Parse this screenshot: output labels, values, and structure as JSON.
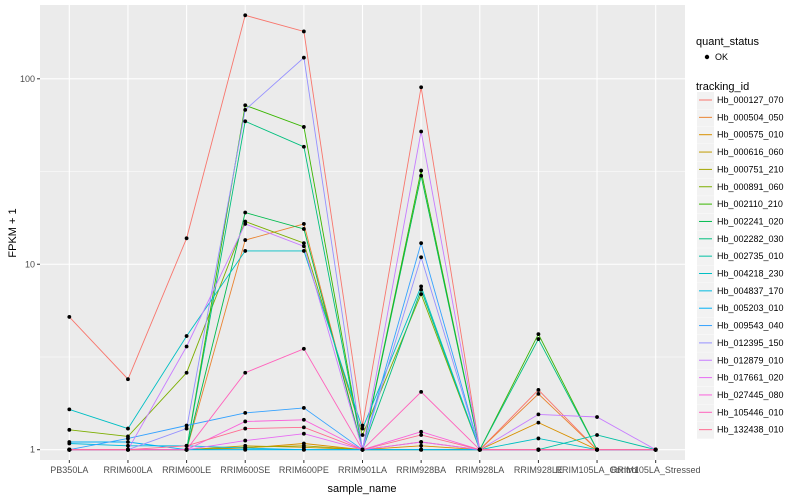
{
  "chart_data": {
    "type": "line",
    "title": "",
    "xlabel": "sample_name",
    "ylabel": "FPKM + 1",
    "y_scale": "log10",
    "ylim": [
      0.88,
      250
    ],
    "y_ticks": [
      1,
      10,
      100
    ],
    "grid": true,
    "legend_position": "right",
    "categories": [
      "PB350LA",
      "RRIM600LA",
      "RRIM600LE",
      "RRIM600SE",
      "RRIM600PE",
      "RRIM901LA",
      "RRIM928BA",
      "RRIM928LA",
      "RRIM928LE",
      "RRIM105LA_Control",
      "RRIM105LA_Stressed"
    ],
    "shape_legend": {
      "title": "quant_status",
      "items": [
        "OK"
      ]
    },
    "color_legend_title": "tracking_id",
    "series": [
      {
        "name": "Hb_000127_070",
        "color": "#F8766D",
        "values": [
          5.2,
          2.4,
          13.8,
          220,
          180,
          1.35,
          90,
          1.0,
          2.1,
          1.0,
          1.0
        ]
      },
      {
        "name": "Hb_000504_050",
        "color": "#EA8331",
        "values": [
          1.0,
          1.0,
          1.0,
          13.5,
          16.5,
          1.0,
          1.1,
          1.0,
          2.0,
          1.0,
          1.0
        ]
      },
      {
        "name": "Hb_000575_010",
        "color": "#D89000",
        "values": [
          1.0,
          1.0,
          1.0,
          1.02,
          1.08,
          1.0,
          1.05,
          1.0,
          1.4,
          1.0,
          1.0
        ]
      },
      {
        "name": "Hb_000616_060",
        "color": "#C09B00",
        "values": [
          1.0,
          1.0,
          1.0,
          1.05,
          1.03,
          1.0,
          1.0,
          1.0,
          1.0,
          1.0,
          1.0
        ]
      },
      {
        "name": "Hb_000751_210",
        "color": "#A3A500",
        "values": [
          1.0,
          1.0,
          1.0,
          1.03,
          1.05,
          1.0,
          1.0,
          1.0,
          1.0,
          1.0,
          1.0
        ]
      },
      {
        "name": "Hb_000891_060",
        "color": "#7CAE00",
        "values": [
          1.28,
          1.18,
          2.6,
          17.0,
          13.0,
          1.2,
          6.9,
          1.0,
          1.0,
          1.0,
          1.0
        ]
      },
      {
        "name": "Hb_002110_210",
        "color": "#39B600",
        "values": [
          1.0,
          1.0,
          1.0,
          72.0,
          55.0,
          1.0,
          32.0,
          1.0,
          4.2,
          1.0,
          1.0
        ]
      },
      {
        "name": "Hb_002241_020",
        "color": "#00BB4E",
        "values": [
          1.0,
          1.0,
          1.0,
          19.0,
          15.5,
          1.0,
          30.0,
          1.0,
          1.0,
          1.0,
          1.0
        ]
      },
      {
        "name": "Hb_002282_030",
        "color": "#00BF7D",
        "values": [
          1.0,
          1.0,
          1.0,
          59.0,
          43.0,
          1.0,
          7.3,
          1.0,
          3.95,
          1.0,
          1.0
        ]
      },
      {
        "name": "Hb_002735_010",
        "color": "#00C1A3",
        "values": [
          1.0,
          1.0,
          1.0,
          1.0,
          1.0,
          1.0,
          1.0,
          1.0,
          1.0,
          1.2,
          1.0
        ]
      },
      {
        "name": "Hb_004218_230",
        "color": "#00BFC4",
        "values": [
          1.65,
          1.3,
          4.1,
          11.8,
          11.8,
          1.3,
          7.6,
          1.0,
          1.15,
          1.0,
          1.0
        ]
      },
      {
        "name": "Hb_004837_170",
        "color": "#00BAE0",
        "values": [
          1.08,
          1.05,
          1.05,
          1.02,
          1.0,
          1.0,
          1.0,
          1.0,
          1.0,
          1.0,
          1.0
        ]
      },
      {
        "name": "Hb_005203_010",
        "color": "#00B0F6",
        "values": [
          1.1,
          1.1,
          1.0,
          1.0,
          1.0,
          1.0,
          1.0,
          1.0,
          1.0,
          1.0,
          1.0
        ]
      },
      {
        "name": "Hb_009543_040",
        "color": "#35A2FF",
        "values": [
          1.0,
          1.15,
          1.35,
          1.58,
          1.68,
          1.0,
          13.0,
          1.0,
          1.0,
          1.0,
          1.0
        ]
      },
      {
        "name": "Hb_012395_150",
        "color": "#9590FF",
        "values": [
          1.0,
          1.0,
          1.3,
          68.0,
          130.0,
          1.0,
          10.9,
          1.0,
          1.0,
          1.0,
          1.0
        ]
      },
      {
        "name": "Hb_012879_010",
        "color": "#C77CFF",
        "values": [
          1.0,
          1.0,
          3.6,
          16.5,
          12.5,
          1.0,
          52.0,
          1.0,
          1.55,
          1.5,
          1.0
        ]
      },
      {
        "name": "Hb_017661_020",
        "color": "#E76BF3",
        "values": [
          1.0,
          1.0,
          1.0,
          1.12,
          1.22,
          1.0,
          1.1,
          1.0,
          1.0,
          1.0,
          1.0
        ]
      },
      {
        "name": "Hb_027445_080",
        "color": "#FA62DB",
        "values": [
          1.0,
          1.0,
          1.0,
          1.42,
          1.45,
          1.0,
          1.25,
          1.0,
          1.0,
          1.0,
          1.0
        ]
      },
      {
        "name": "Hb_105446_010",
        "color": "#FF62BC",
        "values": [
          1.0,
          1.0,
          1.0,
          2.6,
          3.5,
          1.0,
          2.05,
          1.0,
          1.0,
          1.0,
          1.0
        ]
      },
      {
        "name": "Hb_132438_010",
        "color": "#FF6C91",
        "values": [
          1.0,
          1.0,
          1.05,
          1.3,
          1.32,
          1.0,
          1.2,
          1.0,
          1.0,
          1.0,
          1.0
        ]
      }
    ]
  }
}
